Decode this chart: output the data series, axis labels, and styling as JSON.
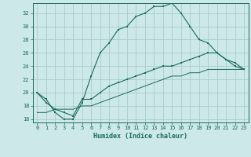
{
  "xlabel": "Humidex (Indice chaleur)",
  "ylabel": "",
  "bg_color": "#cce8e8",
  "grid_color": "#aacccc",
  "line_color": "#1a6b5a",
  "xlim": [
    -0.5,
    23.5
  ],
  "ylim": [
    15.5,
    33.5
  ],
  "xticks": [
    0,
    1,
    2,
    3,
    4,
    5,
    6,
    7,
    8,
    9,
    10,
    11,
    12,
    13,
    14,
    15,
    16,
    17,
    18,
    19,
    20,
    21,
    22,
    23
  ],
  "yticks": [
    16,
    18,
    20,
    22,
    24,
    26,
    28,
    30,
    32
  ],
  "line1_x": [
    0,
    1,
    2,
    3,
    4,
    5,
    6,
    7,
    8,
    9,
    10,
    11,
    12,
    13,
    14,
    15,
    16,
    17,
    18,
    19,
    20,
    21,
    22,
    23
  ],
  "line1_y": [
    20,
    19,
    17,
    16,
    16,
    18.5,
    22.5,
    26,
    27.5,
    29.5,
    30,
    31.5,
    32,
    33,
    33,
    33.5,
    32,
    30,
    28,
    27.5,
    26,
    25,
    24.5,
    23.5
  ],
  "line2_x": [
    0,
    1,
    2,
    3,
    4,
    5,
    6,
    7,
    8,
    9,
    10,
    11,
    12,
    13,
    14,
    15,
    16,
    17,
    18,
    19,
    20,
    21,
    22,
    23
  ],
  "line2_y": [
    20,
    18.5,
    17.5,
    17,
    16.5,
    19,
    19,
    20,
    21,
    21.5,
    22,
    22.5,
    23,
    23.5,
    24,
    24,
    24.5,
    25,
    25.5,
    26,
    26,
    25,
    24,
    23.5
  ],
  "line3_x": [
    0,
    1,
    2,
    3,
    4,
    5,
    6,
    7,
    8,
    9,
    10,
    11,
    12,
    13,
    14,
    15,
    16,
    17,
    18,
    19,
    20,
    21,
    22,
    23
  ],
  "line3_y": [
    17,
    17,
    17.5,
    17.5,
    17.5,
    18,
    18,
    18.5,
    19,
    19.5,
    20,
    20.5,
    21,
    21.5,
    22,
    22.5,
    22.5,
    23,
    23,
    23.5,
    23.5,
    23.5,
    23.5,
    23.5
  ]
}
